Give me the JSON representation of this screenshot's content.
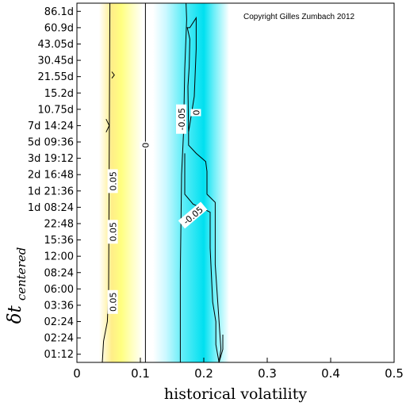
{
  "chart_data": {
    "type": "contour",
    "copyright": "Copyright Gilles Zumbach 2012",
    "xlabel": "historical volatility",
    "ylabel": {
      "symbol": "δt",
      "subscript": "centered"
    },
    "xlim": [
      0,
      0.5
    ],
    "x_ticks": [
      "0",
      "0.1",
      "0.2",
      "0.3",
      "0.4",
      "0.5"
    ],
    "x_tick_values": [
      0,
      0.1,
      0.2,
      0.3,
      0.4,
      0.5
    ],
    "y_ticks": [
      "01:12",
      "02:24",
      "02:24",
      "03:36",
      "06:00",
      "08:24",
      "12:00",
      "15:36",
      "22:48",
      "1d 08:24",
      "1d 21:36",
      "2d 16:48",
      "3d 19:12",
      "5d 09:36",
      "7d 14:24",
      "10.75d",
      "15.2d",
      "21.55d",
      "30.45d",
      "43.05d",
      "60.9d",
      "86.1d"
    ],
    "colors": {
      "positive": "#ffff80",
      "zero": "#ffffff",
      "negative": "#00e0f0"
    },
    "contour_levels": [
      {
        "level": 0.05,
        "label": "0.05",
        "segments": [
          {
            "x": [
              0.04,
              0.042,
              0.048,
              0.05,
              0.052
            ],
            "y_index": [
              -0.5,
              0.8,
              2.0,
              4.0,
              21.5
            ]
          }
        ]
      },
      {
        "level": 0,
        "label": "0",
        "segments": [
          {
            "x": [
              0.108,
              0.108
            ],
            "y_index": [
              -0.5,
              21.5
            ]
          }
        ]
      },
      {
        "level": -0.05,
        "label": "-0.05",
        "segments": [
          {
            "x": [
              0.163,
              0.163,
              0.165,
              0.168,
              0.17,
              0.173,
              0.172
            ],
            "y_index": [
              -0.5,
              5.0,
              11.0,
              13.5,
              17.5,
              20.5,
              21.5
            ]
          }
        ]
      }
    ],
    "contour_labels": [
      {
        "text": "0.05",
        "x": 0.057,
        "y_index": 3.2,
        "rotation": -90
      },
      {
        "text": "0.05",
        "x": 0.057,
        "y_index": 7.5,
        "rotation": -90
      },
      {
        "text": "0.05",
        "x": 0.057,
        "y_index": 10.6,
        "rotation": -90
      },
      {
        "text": "0",
        "x": 0.108,
        "y_index": 12.8,
        "rotation": -90
      },
      {
        "text": "-0.05",
        "x": 0.165,
        "y_index": 14.4,
        "rotation": -90
      },
      {
        "text": "0",
        "x": 0.188,
        "y_index": 14.8,
        "rotation": -90
      },
      {
        "text": "-0.05",
        "x": 0.183,
        "y_index": 8.5,
        "rotation": -40
      }
    ]
  }
}
